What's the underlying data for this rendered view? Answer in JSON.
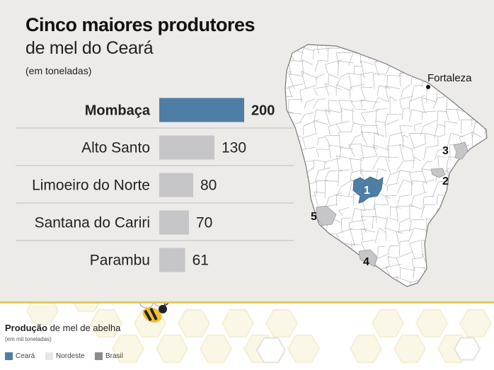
{
  "header": {
    "title_bold": "Cinco maiores produtores",
    "title_light": "de mel do Ceará",
    "unit": "(em toneladas)"
  },
  "chart_data": {
    "type": "bar",
    "orientation": "horizontal",
    "title": "Cinco maiores produtores de mel do Ceará",
    "unit": "(em toneladas)",
    "categories": [
      "Mombaça",
      "Alto Santo",
      "Limoeiro do Norte",
      "Santana do Cariri",
      "Parambu"
    ],
    "values": [
      200,
      130,
      80,
      70,
      61
    ],
    "map_labels": [
      "1",
      "2",
      "3",
      "4",
      "5"
    ],
    "highlight_index": 0,
    "colors": {
      "highlight": "#4e7ea3",
      "default": "#c6c6c9"
    }
  },
  "map": {
    "city_label": "Fortaleza",
    "region_colors": {
      "highlight": "#4e7ea3",
      "other": "#c6c6c9",
      "base": "#ffffff",
      "border": "#888888"
    }
  },
  "legend": {
    "title_bold": "Produção",
    "title_rest": " de mel de abelha",
    "unit": "(em mil toneladas)",
    "items": [
      {
        "label": "Ceará",
        "color": "#4e7ea3"
      },
      {
        "label": "Nordeste",
        "color": "#e6e6e6"
      },
      {
        "label": "Brasil",
        "color": "#8c8c8c"
      }
    ]
  }
}
